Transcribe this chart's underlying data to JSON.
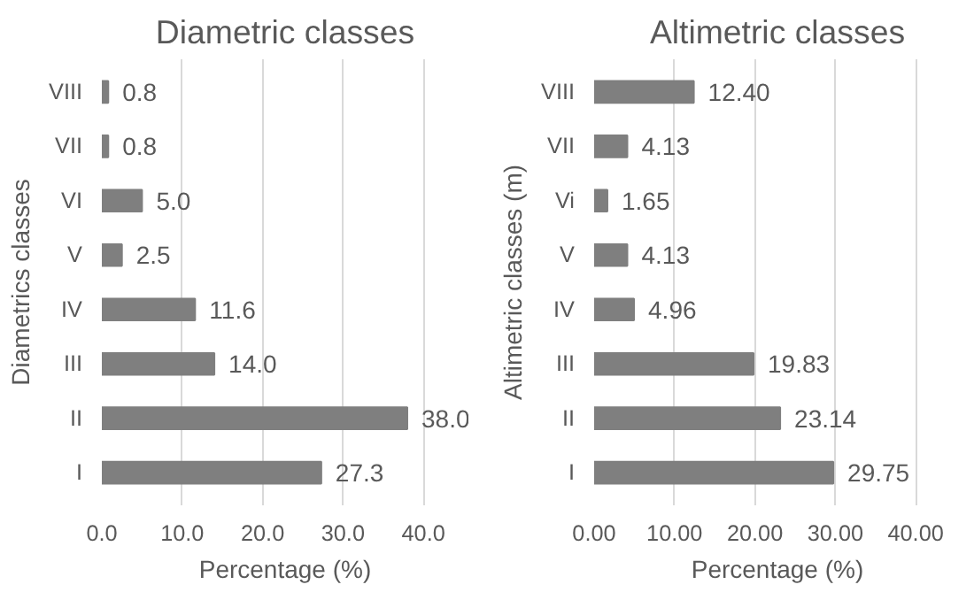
{
  "chart_data": [
    {
      "type": "bar",
      "orientation": "horizontal",
      "title": "Diametric classes",
      "xlabel": "Percentage (%)",
      "ylabel": "Diametrics classes",
      "categories": [
        "VIII",
        "VII",
        "VI",
        "V",
        "IV",
        "III",
        "II",
        "I"
      ],
      "values": [
        0.8,
        0.8,
        5.0,
        2.5,
        11.6,
        14.0,
        38.0,
        27.3
      ],
      "value_labels": [
        "0.8",
        "0.8",
        "5.0",
        "2.5",
        "11.6",
        "14.0",
        "38.0",
        "27.3"
      ],
      "color": "#7f7f7f",
      "xlim": [
        0,
        40
      ],
      "xticks": [
        {
          "value": 0,
          "label": "0.0"
        },
        {
          "value": 10,
          "label": "10.0"
        },
        {
          "value": 20,
          "label": "20.0"
        },
        {
          "value": 30,
          "label": "30.0"
        },
        {
          "value": 40,
          "label": "40.0"
        }
      ],
      "grid": "x"
    },
    {
      "type": "bar",
      "orientation": "horizontal",
      "title": "Altimetric classes",
      "xlabel": "Percentage (%)",
      "ylabel": "Altimetric classes (m)",
      "categories": [
        "VIII",
        "VII",
        "Vi",
        "V",
        "IV",
        "III",
        "II",
        "I"
      ],
      "values": [
        12.4,
        4.13,
        1.65,
        4.13,
        4.96,
        19.83,
        23.14,
        29.75
      ],
      "value_labels": [
        "12.40",
        "4.13",
        "1.65",
        "4.13",
        "4.96",
        "19.83",
        "23.14",
        "29.75"
      ],
      "color": "#7f7f7f",
      "xlim": [
        0,
        40
      ],
      "xticks": [
        {
          "value": 0,
          "label": "0.00"
        },
        {
          "value": 10,
          "label": "10.00"
        },
        {
          "value": 20,
          "label": "20.00"
        },
        {
          "value": 30,
          "label": "30.00"
        },
        {
          "value": 40,
          "label": "40.00"
        }
      ],
      "grid": "x"
    }
  ]
}
